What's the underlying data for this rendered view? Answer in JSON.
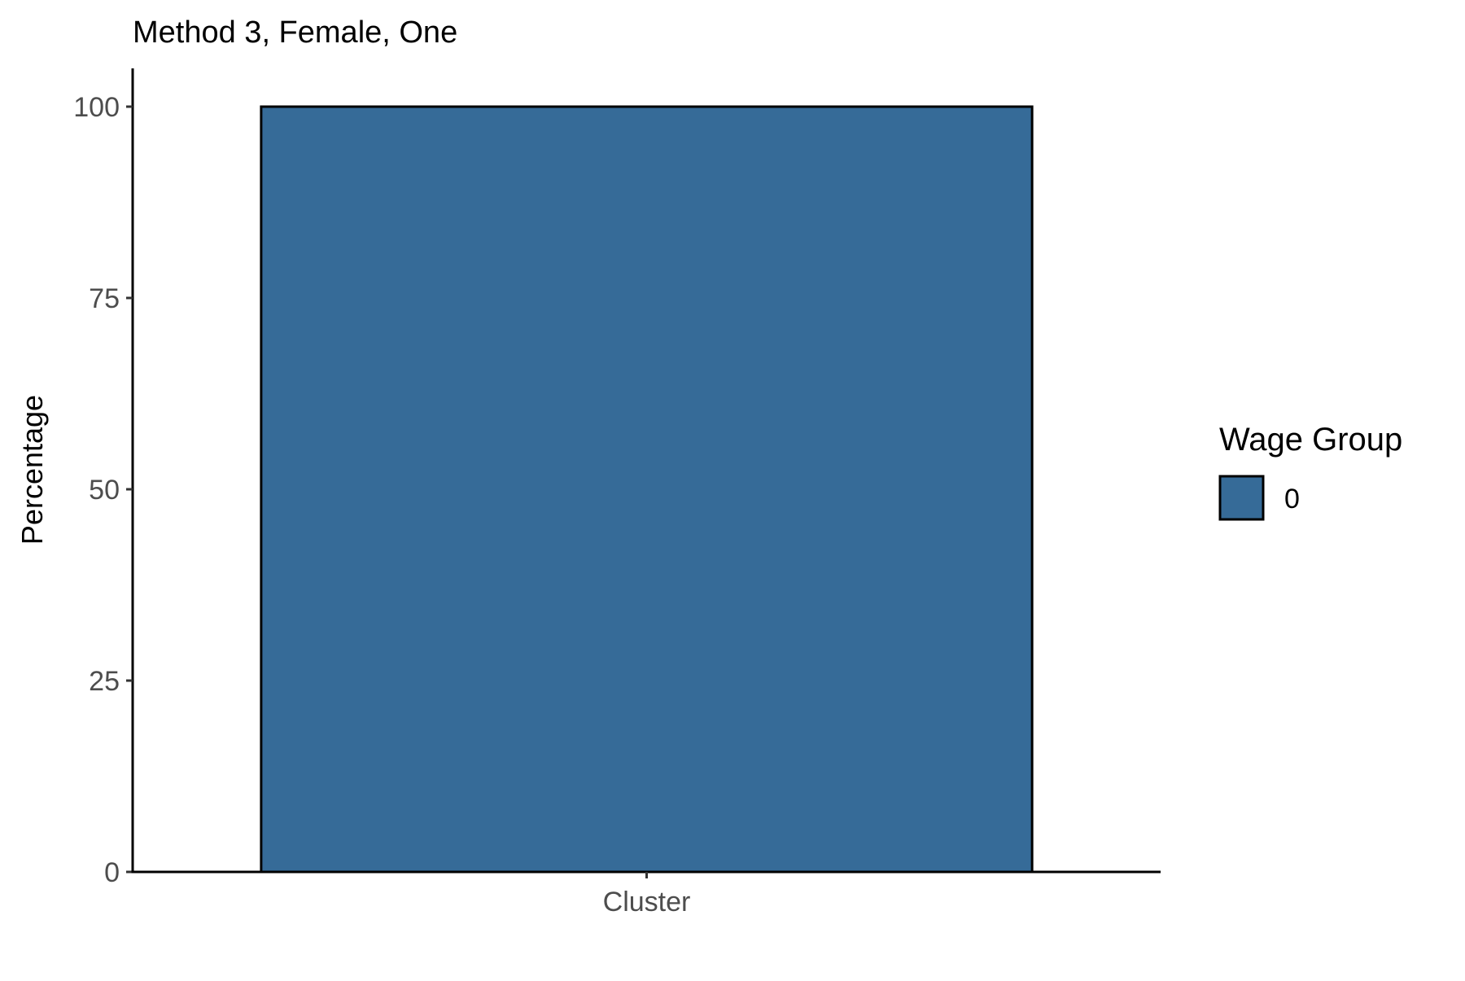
{
  "chart_data": {
    "type": "bar",
    "title": "Method 3, Female, One",
    "xlabel": "",
    "ylabel": "Percentage",
    "categories": [
      "Cluster"
    ],
    "series": [
      {
        "name": "0",
        "values": [
          100
        ],
        "color": "#366b98"
      }
    ],
    "ylim": [
      0,
      105
    ],
    "yticks": [
      0,
      25,
      50,
      75,
      100
    ],
    "grid": false,
    "legend": {
      "title": "Wage Group",
      "placement": "right",
      "entries": [
        "0"
      ]
    },
    "bar_outline_color": "#000000"
  }
}
